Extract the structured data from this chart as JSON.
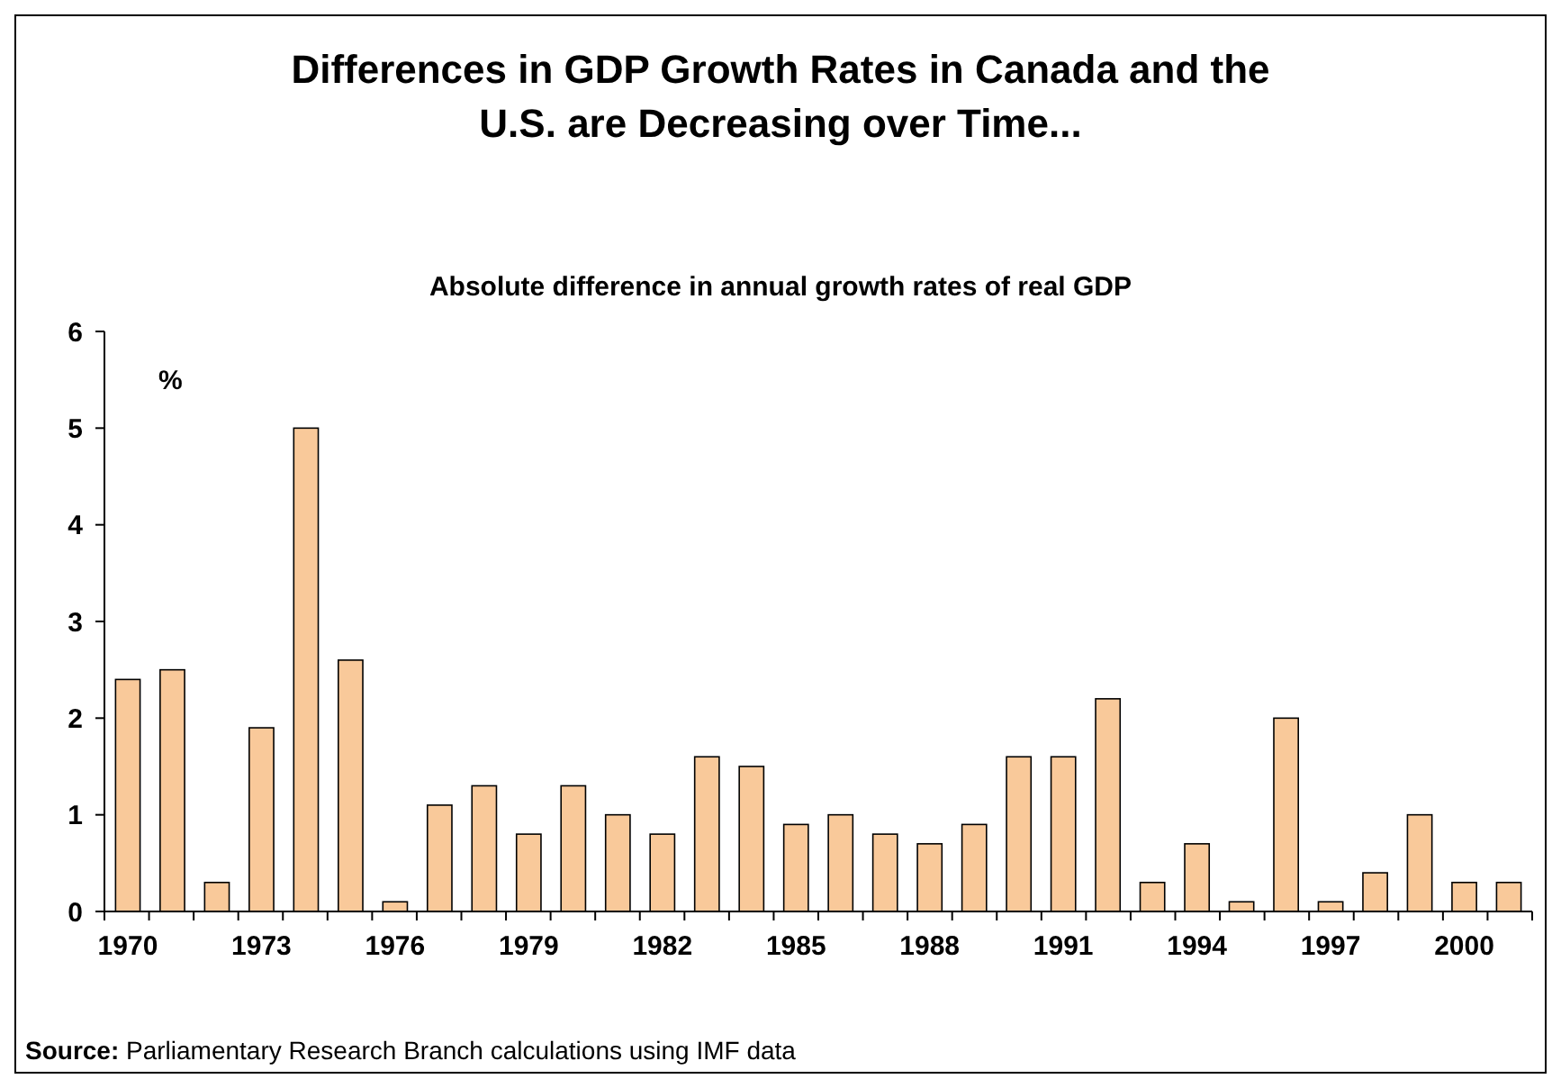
{
  "chart_data": {
    "type": "bar",
    "title": "Differences in GDP Growth Rates in Canada and the U.S. are Decreasing over Time...",
    "subtitle": "Absolute difference in annual growth rates of real GDP",
    "ylabel": "%",
    "categories": [
      "1970",
      null,
      null,
      "1973",
      null,
      null,
      "1976",
      null,
      null,
      "1979",
      null,
      null,
      "1982",
      null,
      null,
      "1985",
      null,
      null,
      "1988",
      null,
      null,
      "1991",
      null,
      null,
      "1994",
      null,
      null,
      "1997",
      null,
      null,
      "2000",
      null
    ],
    "values": [
      2.4,
      2.5,
      0.3,
      1.9,
      5.0,
      2.6,
      0.1,
      1.1,
      1.3,
      0.8,
      1.3,
      1.0,
      0.8,
      1.6,
      1.5,
      0.9,
      1.0,
      0.8,
      0.7,
      0.9,
      1.6,
      1.6,
      2.2,
      0.3,
      0.7,
      0.1,
      2.0,
      0.1,
      0.4,
      1.0,
      0.3,
      0.3
    ],
    "color": "#f9c99a",
    "ylim": [
      0,
      6
    ],
    "yticks": [
      0,
      1,
      2,
      3,
      4,
      5,
      6
    ],
    "grid": false,
    "annotations": [
      "Source: Parliamentary Research Branch calculations using IMF data"
    ]
  }
}
